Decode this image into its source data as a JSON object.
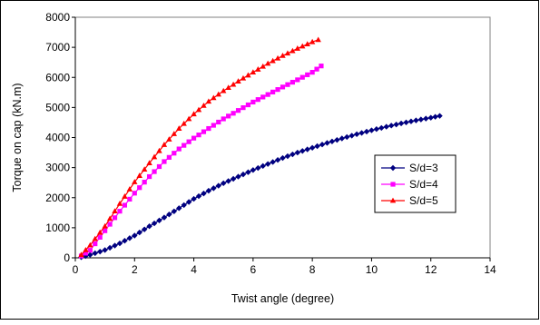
{
  "chart_data": {
    "type": "line",
    "title": "",
    "xlabel": "Twist angle (degree)",
    "ylabel": "Torque on cap (kN.m)",
    "xlim": [
      0,
      14
    ],
    "ylim": [
      0,
      8000
    ],
    "xticks": [
      "0",
      "2",
      "4",
      "6",
      "8",
      "10",
      "12",
      "14"
    ],
    "yticks": [
      "0",
      "1000",
      "2000",
      "3000",
      "4000",
      "5000",
      "6000",
      "7000",
      "8000"
    ],
    "grid": false,
    "legend_position": "right",
    "series": [
      {
        "name": "S/d=3",
        "color": "#000080",
        "marker": "diamond",
        "x": [
          0.2,
          0.5,
          1.0,
          1.5,
          2.0,
          2.5,
          3.0,
          3.5,
          4.0,
          4.5,
          5.0,
          5.5,
          6.0,
          6.5,
          7.0,
          7.5,
          8.0,
          8.5,
          9.0,
          9.5,
          10.0,
          10.5,
          11.0,
          11.5,
          12.0,
          12.3
        ],
        "y": [
          20,
          100,
          260,
          480,
          740,
          1050,
          1340,
          1650,
          1960,
          2230,
          2480,
          2700,
          2920,
          3120,
          3320,
          3500,
          3660,
          3820,
          3970,
          4110,
          4240,
          4360,
          4470,
          4570,
          4660,
          4720
        ]
      },
      {
        "name": "S/d=4",
        "color": "#ff00ff",
        "marker": "square",
        "x": [
          0.2,
          0.5,
          1.0,
          1.5,
          2.0,
          2.5,
          3.0,
          3.5,
          4.0,
          4.5,
          5.0,
          5.5,
          6.0,
          6.5,
          7.0,
          7.5,
          8.0,
          8.3
        ],
        "y": [
          60,
          250,
          900,
          1550,
          2150,
          2700,
          3200,
          3620,
          3980,
          4300,
          4620,
          4900,
          5180,
          5430,
          5680,
          5920,
          6170,
          6380
        ]
      },
      {
        "name": "S/d=5",
        "color": "#ff0000",
        "marker": "triangle",
        "x": [
          0.2,
          0.5,
          1.0,
          1.5,
          2.0,
          2.5,
          3.0,
          3.5,
          4.0,
          4.5,
          5.0,
          5.5,
          6.0,
          6.5,
          7.0,
          7.5,
          8.0,
          8.2
        ],
        "y": [
          100,
          420,
          1050,
          1800,
          2520,
          3150,
          3760,
          4300,
          4780,
          5200,
          5550,
          5870,
          6170,
          6460,
          6720,
          6960,
          7180,
          7250
        ]
      }
    ]
  }
}
